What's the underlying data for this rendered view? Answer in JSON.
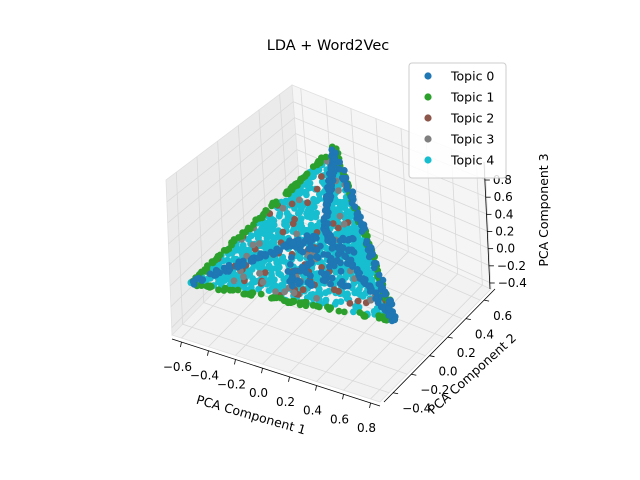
{
  "chart_data": {
    "type": "scatter",
    "projection": "3d",
    "title": "LDA + Word2Vec",
    "xlabel": "PCA Component 1",
    "ylabel": "PCA Component 2",
    "zlabel": "PCA Component 3",
    "xticks": [
      "−0.6",
      "−0.4",
      "−0.2",
      "0.0",
      "0.2",
      "0.4",
      "0.6",
      "0.8"
    ],
    "yticks": [
      "−0.4",
      "−0.2",
      "0.0",
      "0.2",
      "0.4",
      "0.6"
    ],
    "zticks": [
      "−0.4",
      "−0.2",
      "0.0",
      "0.2",
      "0.4",
      "0.6",
      "0.8"
    ],
    "grid": true,
    "legend_position": "top-right",
    "point_cloud_shape": "tetrahedron",
    "vertices": [
      {
        "x": -0.62,
        "y": -0.3,
        "z": -0.05
      },
      {
        "x": 0.72,
        "y": -0.42,
        "z": -0.4
      },
      {
        "x": 0.05,
        "y": 0.6,
        "z": 0.75
      },
      {
        "x": 0.1,
        "y": 0.2,
        "z": -0.15
      }
    ],
    "series": [
      {
        "name": "Topic 0",
        "color": "#1f77b4",
        "distribution": "strong edges and a central cluster"
      },
      {
        "name": "Topic 1",
        "color": "#2ca02c",
        "distribution": "outer edges"
      },
      {
        "name": "Topic 2",
        "color": "#8c564b",
        "distribution": "sparse interior"
      },
      {
        "name": "Topic 3",
        "color": "#7f7f7f",
        "distribution": "sparse interior"
      },
      {
        "name": "Topic 4",
        "color": "#17becf",
        "distribution": "filled faces"
      }
    ]
  }
}
